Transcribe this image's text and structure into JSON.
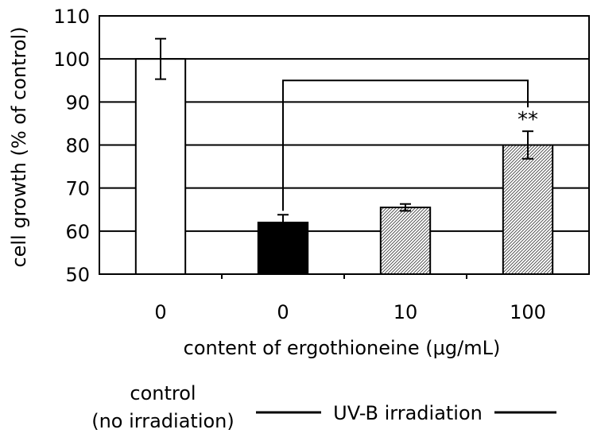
{
  "chart_data": {
    "type": "bar",
    "categories": [
      "0",
      "0",
      "10",
      "100"
    ],
    "values": [
      100,
      62,
      65.5,
      80
    ],
    "errors": [
      4.7,
      1.8,
      0.8,
      3.2
    ],
    "bar_styles": [
      "white",
      "black",
      "hatched",
      "hatched"
    ],
    "xlabel": "content of ergothioneine (μg/mL)",
    "ylabel": "cell growth (% of control)",
    "ylim": [
      50,
      110
    ],
    "yticks": [
      50,
      60,
      70,
      80,
      90,
      100,
      110
    ],
    "grid": true,
    "significance": {
      "from": 1,
      "to": 3,
      "label": "**"
    },
    "group_labels": {
      "control_line1": "control",
      "control_line2": "(no irradiation)",
      "uvb": "UV-B irradiation"
    }
  }
}
